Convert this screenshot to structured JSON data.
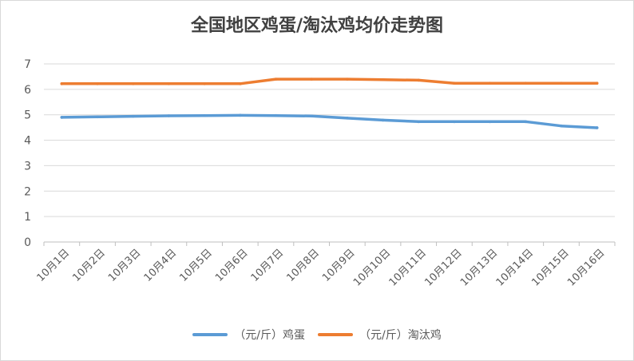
{
  "chart_data": {
    "type": "line",
    "title": "全国地区鸡蛋/淘汰鸡均价走势图",
    "categories": [
      "10月1日",
      "10月2日",
      "10月3日",
      "10月4日",
      "10月5日",
      "10月6日",
      "10月7日",
      "10月8日",
      "10月9日",
      "10月10日",
      "10月11日",
      "10月12日",
      "10月13日",
      "10月14日",
      "10月15日",
      "10月16日"
    ],
    "ylim": [
      0,
      7
    ],
    "yticks": [
      0,
      1,
      2,
      3,
      4,
      5,
      6,
      7
    ],
    "grid": true,
    "legend_position": "bottom",
    "series": [
      {
        "name": "（元/斤）鸡蛋",
        "color": "#5b9bd5",
        "values": [
          4.9,
          4.92,
          4.94,
          4.96,
          4.97,
          4.98,
          4.97,
          4.95,
          4.87,
          4.79,
          4.73,
          4.73,
          4.73,
          4.73,
          4.56,
          4.49
        ]
      },
      {
        "name": "（元/斤）淘汰鸡",
        "color": "#ed7d31",
        "values": [
          6.22,
          6.22,
          6.22,
          6.22,
          6.22,
          6.22,
          6.4,
          6.4,
          6.4,
          6.38,
          6.36,
          6.24,
          6.24,
          6.24,
          6.24,
          6.24
        ]
      }
    ]
  }
}
